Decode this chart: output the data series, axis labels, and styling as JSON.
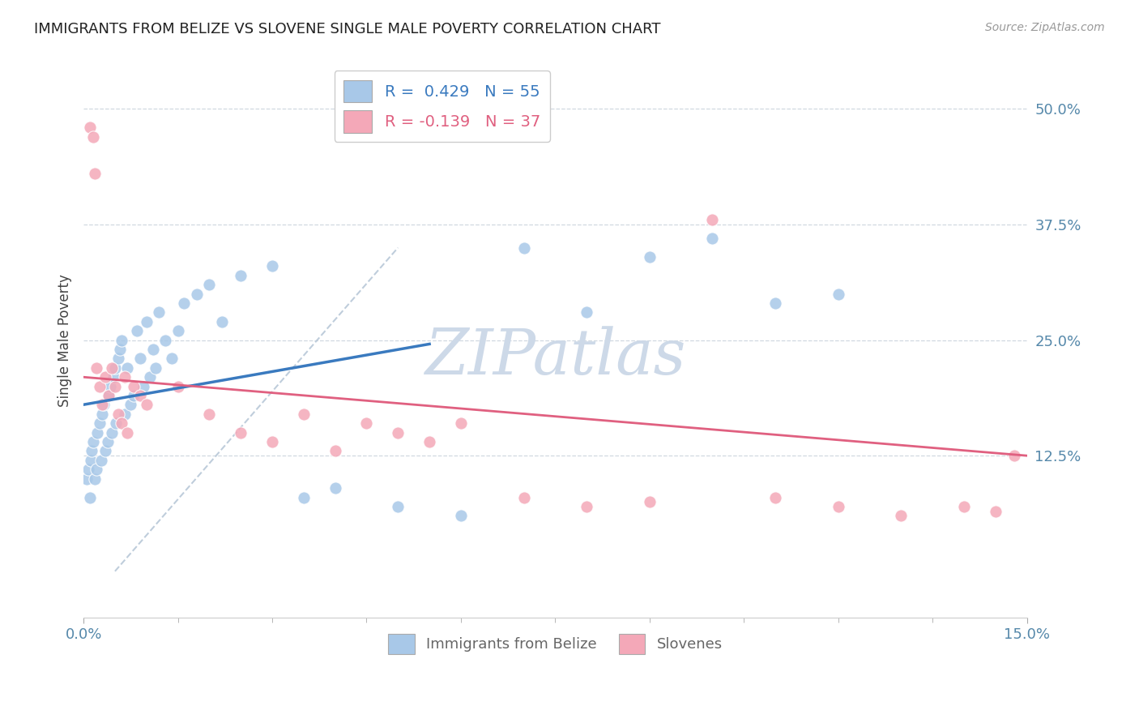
{
  "title": "IMMIGRANTS FROM BELIZE VS SLOVENE SINGLE MALE POVERTY CORRELATION CHART",
  "source": "Source: ZipAtlas.com",
  "ylabel": "Single Male Poverty",
  "yticks_labels": [
    "12.5%",
    "25.0%",
    "37.5%",
    "50.0%"
  ],
  "ytick_vals": [
    12.5,
    25.0,
    37.5,
    50.0
  ],
  "xmin": 0.0,
  "xmax": 15.0,
  "ymin": -5.0,
  "ymax": 55.0,
  "legend_label1": "Immigrants from Belize",
  "legend_label2": "Slovenes",
  "r1": 0.429,
  "n1": 55,
  "r2": -0.139,
  "n2": 37,
  "color1": "#a8c8e8",
  "color2": "#f4a8b8",
  "line_color1": "#3a7abf",
  "line_color2": "#e06080",
  "diag_color": "#b8c8d8",
  "watermark_color": "#cdd9e8",
  "belize_x": [
    0.05,
    0.08,
    0.1,
    0.12,
    0.13,
    0.15,
    0.18,
    0.2,
    0.22,
    0.25,
    0.28,
    0.3,
    0.32,
    0.35,
    0.38,
    0.4,
    0.42,
    0.45,
    0.48,
    0.5,
    0.52,
    0.55,
    0.58,
    0.6,
    0.65,
    0.7,
    0.75,
    0.8,
    0.85,
    0.9,
    0.95,
    1.0,
    1.05,
    1.1,
    1.15,
    1.2,
    1.3,
    1.4,
    1.5,
    1.6,
    1.8,
    2.0,
    2.2,
    2.5,
    3.0,
    3.5,
    4.0,
    5.0,
    6.0,
    7.0,
    8.0,
    9.0,
    10.0,
    11.0,
    12.0
  ],
  "belize_y": [
    10.0,
    11.0,
    8.0,
    12.0,
    13.0,
    14.0,
    10.0,
    11.0,
    15.0,
    16.0,
    12.0,
    17.0,
    18.0,
    13.0,
    14.0,
    19.0,
    20.0,
    15.0,
    21.0,
    22.0,
    16.0,
    23.0,
    24.0,
    25.0,
    17.0,
    22.0,
    18.0,
    19.0,
    26.0,
    23.0,
    20.0,
    27.0,
    21.0,
    24.0,
    22.0,
    28.0,
    25.0,
    23.0,
    26.0,
    29.0,
    30.0,
    31.0,
    27.0,
    32.0,
    33.0,
    8.0,
    9.0,
    7.0,
    6.0,
    35.0,
    28.0,
    34.0,
    36.0,
    29.0,
    30.0
  ],
  "slovene_x": [
    0.1,
    0.15,
    0.18,
    0.2,
    0.25,
    0.3,
    0.35,
    0.4,
    0.45,
    0.5,
    0.55,
    0.6,
    0.65,
    0.7,
    0.8,
    0.9,
    1.0,
    1.5,
    2.0,
    2.5,
    3.0,
    3.5,
    4.0,
    4.5,
    5.0,
    5.5,
    6.0,
    7.0,
    8.0,
    9.0,
    10.0,
    11.0,
    12.0,
    13.0,
    14.0,
    14.5,
    14.8
  ],
  "slovene_y": [
    48.0,
    47.0,
    43.0,
    22.0,
    20.0,
    18.0,
    21.0,
    19.0,
    22.0,
    20.0,
    17.0,
    16.0,
    21.0,
    15.0,
    20.0,
    19.0,
    18.0,
    20.0,
    17.0,
    15.0,
    14.0,
    17.0,
    13.0,
    16.0,
    15.0,
    14.0,
    16.0,
    8.0,
    7.0,
    7.5,
    38.0,
    8.0,
    7.0,
    6.0,
    7.0,
    6.5,
    12.5
  ]
}
